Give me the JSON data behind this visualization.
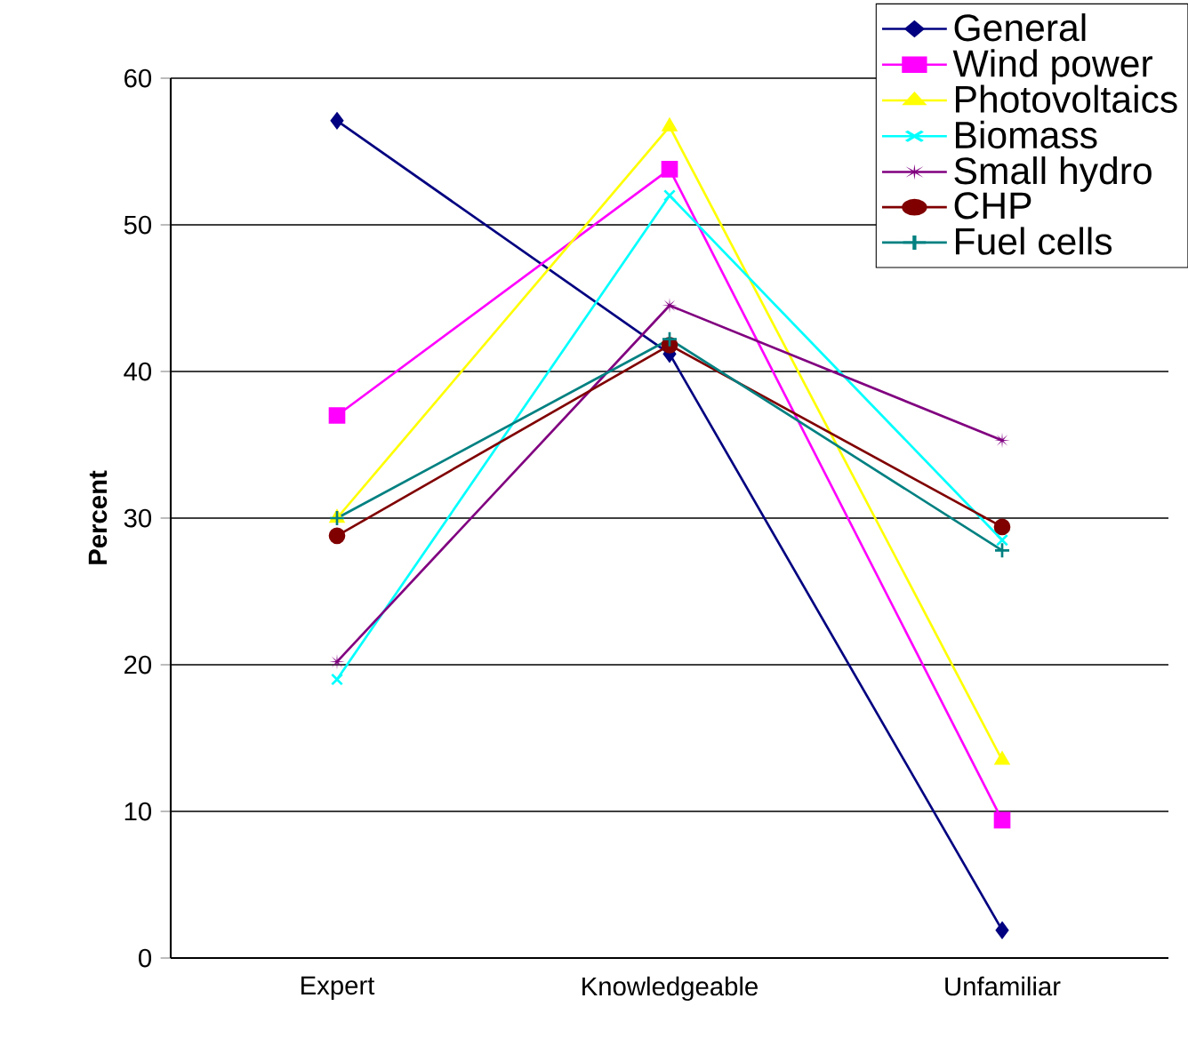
{
  "chart_data": {
    "type": "line",
    "ylabel": "Percent",
    "categories": [
      "Expert",
      "Knowledgeable",
      "Unfamiliar"
    ],
    "ylim": [
      0,
      60
    ],
    "yticks": [
      0,
      10,
      20,
      30,
      40,
      50,
      60
    ],
    "grid": "y",
    "legend": "top right",
    "line_style": "solid",
    "series": [
      {
        "name": "General",
        "color": "#000080",
        "marker": "diamond",
        "values": [
          57.1,
          41.2,
          1.9
        ]
      },
      {
        "name": "Wind power",
        "color": "#ff00ff",
        "marker": "square",
        "values": [
          37,
          53.8,
          9.4
        ]
      },
      {
        "name": "Photovoltaics",
        "color": "#ffff00",
        "marker": "triangle",
        "values": [
          30,
          56.7,
          13.5
        ]
      },
      {
        "name": "Biomass",
        "color": "#00ffff",
        "marker": "cross",
        "values": [
          19,
          52,
          28.5
        ]
      },
      {
        "name": "Small hydro",
        "color": "#800080",
        "marker": "star",
        "values": [
          20.2,
          44.5,
          35.3
        ]
      },
      {
        "name": "CHP",
        "color": "#800000",
        "marker": "circle",
        "values": [
          28.8,
          41.8,
          29.4
        ]
      },
      {
        "name": "Fuel cells",
        "color": "#008080",
        "marker": "plus",
        "values": [
          30,
          42.2,
          27.8
        ]
      }
    ]
  }
}
